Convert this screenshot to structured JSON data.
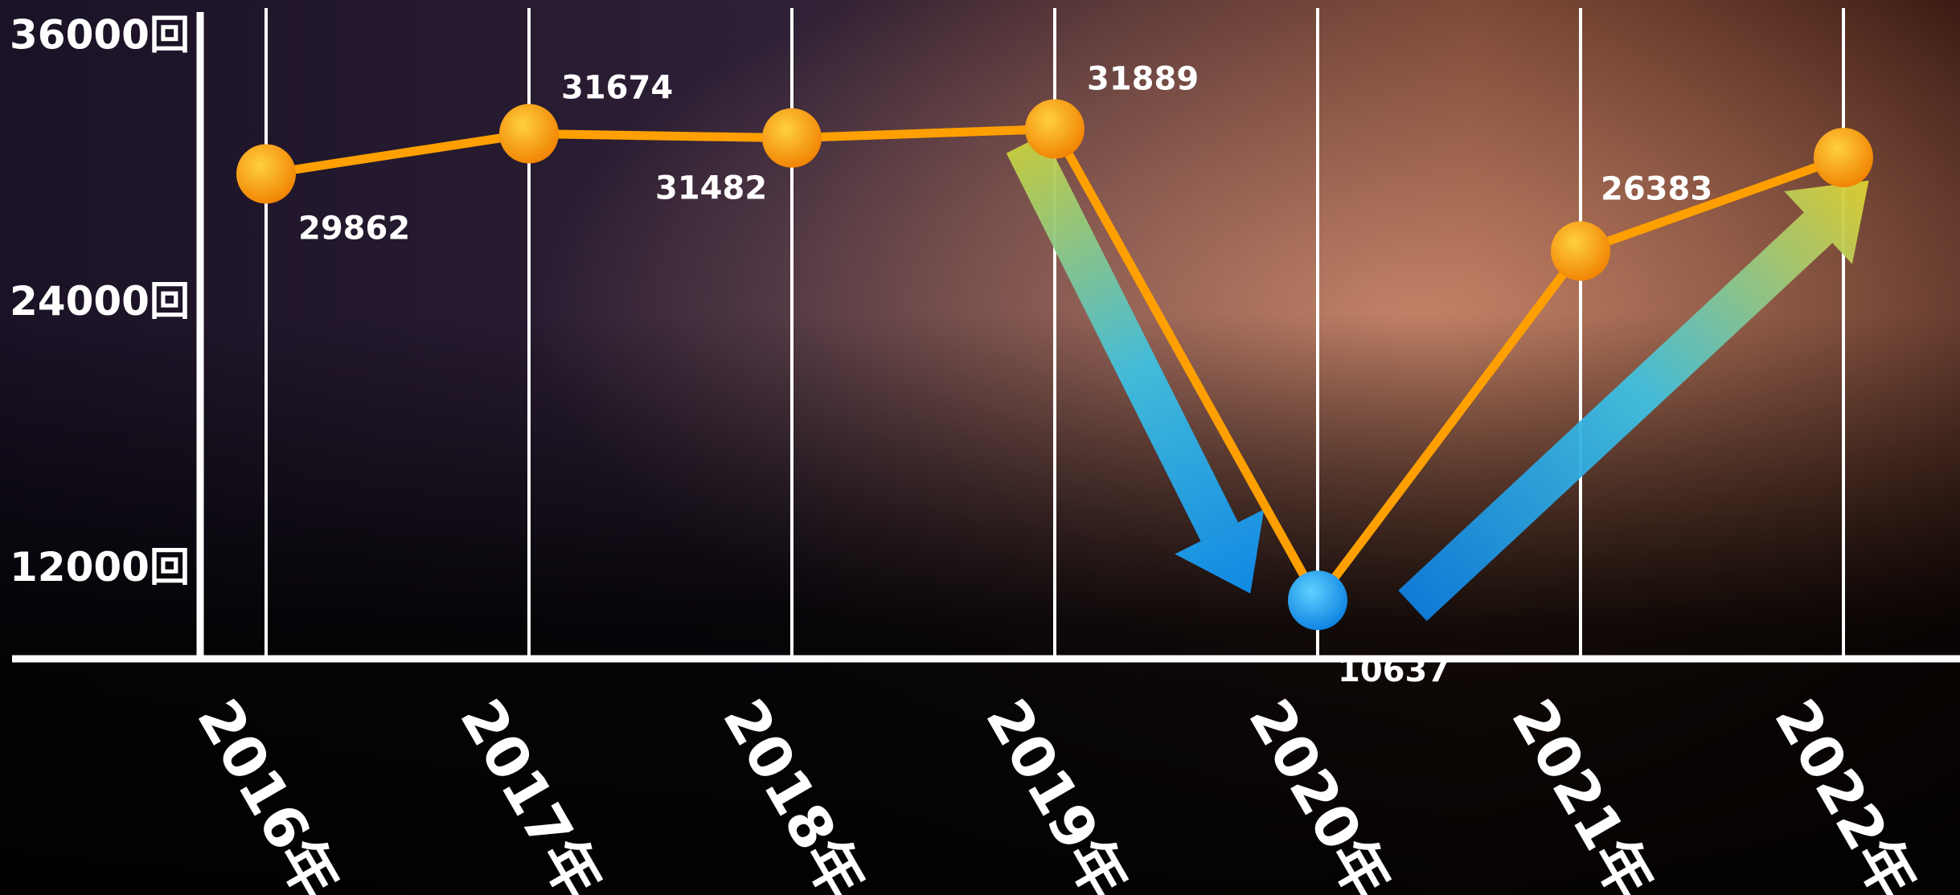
{
  "chart_data": {
    "type": "line",
    "categories": [
      "2016年",
      "2017年",
      "2018年",
      "2019年",
      "2020年",
      "2021年",
      "2022年"
    ],
    "series": [
      {
        "color": "#ffa000",
        "values": [
          29862,
          31674,
          31482,
          31889,
          10637,
          26383,
          30600
        ],
        "value_labels": [
          "29862",
          "31674",
          "31482",
          "31889",
          "10637",
          "26383",
          null
        ],
        "marker_colors": [
          "#ffa000",
          "#ffa000",
          "#ffa000",
          "#ffa000",
          "#1aa0f0",
          "#ffa000",
          "#ffa000"
        ]
      }
    ],
    "ylim": [
      8000,
      36000
    ],
    "yticks": [
      {
        "value": 12000,
        "label": "12000回"
      },
      {
        "value": 24000,
        "label": "24000回"
      },
      {
        "value": 36000,
        "label": "36000回"
      }
    ],
    "grid": true
  }
}
